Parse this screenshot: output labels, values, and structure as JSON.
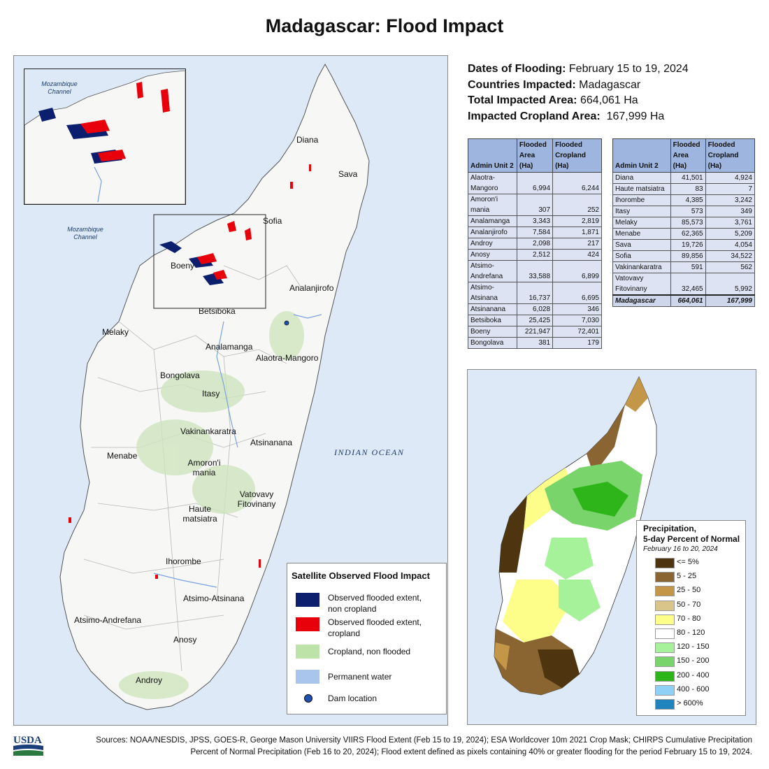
{
  "title": "Madagascar: Flood Impact",
  "info": {
    "dates_label": "Dates of Flooding:",
    "dates_value": "February 15 to 19, 2024",
    "countries_label": "Countries Impacted:",
    "countries_value": "Madagascar",
    "total_label": "Total Impacted Area:",
    "total_value": "664,061 Ha",
    "crop_label": "Impacted Cropland Area:",
    "crop_value": "167,999 Ha"
  },
  "table": {
    "headers": [
      "Admin Unit 2",
      "Flooded Area (Ha)",
      "Flooded Cropland (Ha)"
    ],
    "left_rows": [
      [
        "Alaotra-Mangoro",
        "6,994",
        "6,244"
      ],
      [
        "Amoron'i mania",
        "307",
        "252"
      ],
      [
        "Analamanga",
        "3,343",
        "2,819"
      ],
      [
        "Analanjirofo",
        "7,584",
        "1,871"
      ],
      [
        "Androy",
        "2,098",
        "217"
      ],
      [
        "Anosy",
        "2,512",
        "424"
      ],
      [
        "Atsimo-Andrefana",
        "33,588",
        "6,899"
      ],
      [
        "Atsimo-Atsinana",
        "16,737",
        "6,695"
      ],
      [
        "Atsinanana",
        "6,028",
        "346"
      ],
      [
        "Betsiboka",
        "25,425",
        "7,030"
      ],
      [
        "Boeny",
        "221,947",
        "72,401"
      ],
      [
        "Bongolava",
        "381",
        "179"
      ]
    ],
    "right_rows": [
      [
        "Diana",
        "41,501",
        "4,924"
      ],
      [
        "Haute matsiatra",
        "83",
        "7"
      ],
      [
        "Ihorombe",
        "4,385",
        "3,242"
      ],
      [
        "Itasy",
        "573",
        "349"
      ],
      [
        "Melaky",
        "85,573",
        "3,761"
      ],
      [
        "Menabe",
        "62,365",
        "5,209"
      ],
      [
        "Sava",
        "19,726",
        "4,054"
      ],
      [
        "Sofia",
        "89,856",
        "34,522"
      ],
      [
        "Vakinankaratra",
        "591",
        "562"
      ],
      [
        "Vatovavy Fitovinany",
        "32,465",
        "5,992"
      ]
    ],
    "total": [
      "Madagascar",
      "664,061",
      "167,999"
    ]
  },
  "map_labels": {
    "diana": "Diana",
    "sava": "Sava",
    "sofia": "Sofia",
    "boeny": "Boeny",
    "analanjirofo": "Analanjirofo",
    "betsiboka": "Betsiboka",
    "melaky": "Melaky",
    "analamanga": "Analamanga",
    "alaotra": "Alaotra-Mangoro",
    "bongolava": "Bongolava",
    "itasy": "Itasy",
    "vakinankaratra": "Vakinankaratra",
    "atsinanana": "Atsinanana",
    "menabe": "Menabe",
    "amoroni1": "Amoron'i",
    "amoroni2": "mania",
    "vatovavy1": "Vatovavy",
    "vatovavy2": "Fitovinany",
    "haute1": "Haute",
    "haute2": "matsiatra",
    "ihorombe": "Ihorombe",
    "atsimo_atsinana": "Atsimo-Atsinana",
    "atsimo_andrefana": "Atsimo-Andrefana",
    "anosy": "Anosy",
    "androy": "Androy",
    "ocean": "INDIAN OCEAN",
    "channel1": "Mozambique",
    "channel2": "Channel"
  },
  "flood_legend": {
    "title": "Satellite Observed Flood Impact",
    "items": [
      {
        "label1": "Observed flooded extent,",
        "label2": "non cropland",
        "color": "#0b1f6e"
      },
      {
        "label1": "Observed flooded extent,",
        "label2": "cropland",
        "color": "#e8000b"
      },
      {
        "label1": "Cropland, non flooded",
        "label2": "",
        "color": "#bde3a8"
      },
      {
        "label1": "Permanent water",
        "label2": "",
        "color": "#a9c5ec"
      },
      {
        "label1": "Dam location",
        "label2": "",
        "color": "#2050b0"
      }
    ]
  },
  "precip_legend": {
    "title1": "Precipitation,",
    "title2": "5-day Percent of Normal",
    "subtitle": "February 16 to 20, 2024",
    "items": [
      {
        "label": "<= 5%",
        "color": "#4e3510"
      },
      {
        "label": "5 - 25",
        "color": "#8a6431"
      },
      {
        "label": "25 - 50",
        "color": "#c49648"
      },
      {
        "label": "50 - 70",
        "color": "#d9c48a"
      },
      {
        "label": "70 - 80",
        "color": "#fdfd8a"
      },
      {
        "label": "80 - 120",
        "color": "#ffffff"
      },
      {
        "label": "120 - 150",
        "color": "#a6f29a"
      },
      {
        "label": "150 - 200",
        "color": "#79d46b"
      },
      {
        "label": "200 - 400",
        "color": "#2db51a"
      },
      {
        "label": "400 - 600",
        "color": "#8fd0f7"
      },
      {
        "label": "> 600%",
        "color": "#1f83bd"
      }
    ]
  },
  "sources": {
    "line1": "Sources: NOAA/NESDIS, JPSS, GOES-R, George Mason University VIIRS Flood Extent (Feb 15 to 19, 2024); ESA Worldcover 10m 2021 Crop Mask; CHIRPS Cumulative Precipitation",
    "line2": "Percent of Normal Precipitation (Feb 16 to 20, 2024); Flood extent defined as pixels containing 40% or greater flooding for the period February 15 to 19, 2024."
  },
  "logo_text": "USDA"
}
